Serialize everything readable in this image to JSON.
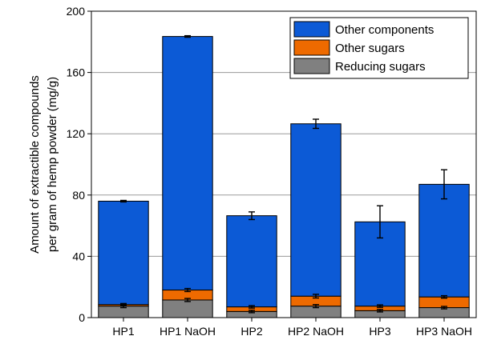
{
  "chart_data": {
    "type": "bar",
    "stacked": true,
    "categories": [
      "HP1",
      "HP1 NaOH",
      "HP2",
      "HP2 NaOH",
      "HP3",
      "HP3 NaOH"
    ],
    "series": [
      {
        "name": "Reducing sugars",
        "values": [
          7.5,
          11.5,
          4,
          7.5,
          4.5,
          6.5
        ],
        "error": [
          1,
          1,
          0.8,
          1,
          0.8,
          0.8
        ],
        "color": "#808080"
      },
      {
        "name": "Other sugars",
        "values": [
          1,
          6.5,
          3,
          6.5,
          3,
          7
        ],
        "error": [
          0.7,
          1,
          0.8,
          1.2,
          0.8,
          0.8
        ],
        "color": "#EE6A00"
      },
      {
        "name": "Other components",
        "values": [
          67.5,
          165.5,
          59.5,
          112.5,
          55,
          73.5
        ],
        "error": [
          0.5,
          0.5,
          2.5,
          3,
          10.5,
          9.5
        ],
        "color": "#0C5AD6"
      }
    ],
    "ylabel_lines": [
      "Amount of extractible compounds",
      "per gram of hemp powder (mg/g)"
    ],
    "xlabel": "",
    "ylim": [
      0,
      200
    ],
    "yticks": [
      0,
      40,
      80,
      120,
      160,
      200
    ],
    "grid": "horizontal",
    "legend_position": "top-right"
  }
}
